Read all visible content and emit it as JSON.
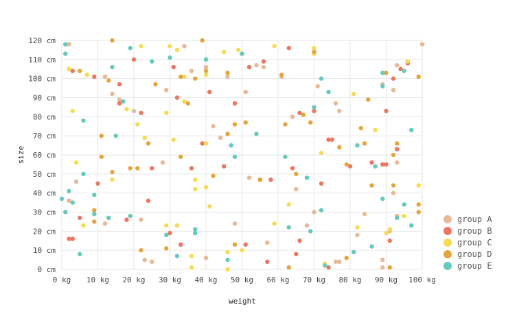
{
  "chart_data": {
    "type": "scatter",
    "xlabel": "weight",
    "ylabel": "size",
    "x_unit": "kg",
    "y_unit": "cm",
    "xlim": [
      0,
      100
    ],
    "ylim": [
      0,
      120
    ],
    "x_ticks": [
      "0 kg",
      "10 kg",
      "20 kg",
      "30 kg",
      "40 kg",
      "50 kg",
      "60 kg",
      "70 kg",
      "80 kg",
      "90 kg",
      "100 kg"
    ],
    "y_ticks": [
      "0 cm",
      "10 cm",
      "20 cm",
      "30 cm",
      "40 cm",
      "50 cm",
      "60 cm",
      "70 cm",
      "80 cm",
      "90 cm",
      "100 cm",
      "110 cm",
      "120 cm"
    ],
    "grid": true,
    "legend_position": "bottom-right",
    "series": [
      {
        "name": "group A",
        "color": "#e9b896",
        "points": [
          [
            2,
            118
          ],
          [
            12,
            101
          ],
          [
            14,
            92
          ],
          [
            20,
            83
          ],
          [
            29,
            94
          ],
          [
            34,
            117
          ],
          [
            36,
            104
          ],
          [
            40,
            106
          ],
          [
            42,
            75
          ],
          [
            46,
            101
          ],
          [
            51,
            93
          ],
          [
            54,
            107
          ],
          [
            56,
            106
          ],
          [
            61,
            101
          ],
          [
            64,
            80
          ],
          [
            71,
            96
          ],
          [
            76,
            87
          ],
          [
            77,
            83
          ],
          [
            89,
            97
          ],
          [
            92,
            94
          ],
          [
            93,
            107
          ],
          [
            100,
            118
          ],
          [
            16,
            89
          ],
          [
            4,
            46
          ],
          [
            12,
            24
          ],
          [
            22,
            26
          ],
          [
            23,
            5
          ],
          [
            25,
            4
          ],
          [
            28,
            56
          ],
          [
            40,
            6
          ],
          [
            44,
            69
          ],
          [
            48,
            24
          ],
          [
            52,
            48
          ],
          [
            57,
            14
          ],
          [
            65,
            42
          ],
          [
            68,
            23
          ],
          [
            70,
            30
          ],
          [
            76,
            4
          ],
          [
            77,
            4
          ],
          [
            84,
            29
          ],
          [
            82,
            18
          ],
          [
            89,
            5
          ],
          [
            89,
            1
          ],
          [
            91,
            20
          ],
          [
            92,
            40
          ],
          [
            93,
            56
          ],
          [
            93,
            63
          ],
          [
            2,
            36
          ],
          [
            93,
            28
          ]
        ]
      },
      {
        "name": "group B",
        "color": "#ef7462",
        "points": [
          [
            3,
            104
          ],
          [
            9,
            101
          ],
          [
            16,
            97
          ],
          [
            20,
            110
          ],
          [
            16,
            87
          ],
          [
            22,
            82
          ],
          [
            31,
            106
          ],
          [
            32,
            90
          ],
          [
            39,
            66
          ],
          [
            41,
            93
          ],
          [
            50,
            113
          ],
          [
            52,
            106
          ],
          [
            56,
            109
          ],
          [
            63,
            116
          ],
          [
            66,
            82
          ],
          [
            70,
            83
          ],
          [
            74,
            68
          ],
          [
            75,
            68
          ],
          [
            80,
            54
          ],
          [
            86,
            56
          ],
          [
            89,
            55
          ],
          [
            90,
            55
          ],
          [
            90,
            83
          ],
          [
            92,
            100
          ],
          [
            93,
            63
          ],
          [
            94,
            105
          ],
          [
            96,
            108
          ],
          [
            10,
            45
          ],
          [
            5,
            27
          ],
          [
            18,
            26
          ],
          [
            24,
            36
          ],
          [
            25,
            53
          ],
          [
            33,
            13
          ],
          [
            36,
            53
          ],
          [
            45,
            54
          ],
          [
            48,
            87
          ],
          [
            55,
            47
          ],
          [
            58,
            47
          ],
          [
            64,
            53
          ],
          [
            65,
            8
          ],
          [
            66,
            15
          ],
          [
            72,
            45
          ],
          [
            74,
            1
          ],
          [
            91,
            15
          ],
          [
            30,
            19
          ],
          [
            2,
            16
          ],
          [
            3,
            16
          ],
          [
            51,
            13
          ],
          [
            57,
            4
          ]
        ]
      },
      {
        "name": "group C",
        "color": "#f6dc4f",
        "points": [
          [
            2,
            105
          ],
          [
            7,
            102
          ],
          [
            22,
            117
          ],
          [
            30,
            117
          ],
          [
            32,
            115
          ],
          [
            34,
            101
          ],
          [
            40,
            102
          ],
          [
            45,
            114
          ],
          [
            49,
            115
          ],
          [
            59,
            117
          ],
          [
            70,
            116
          ],
          [
            70,
            113
          ],
          [
            81,
            92
          ],
          [
            87,
            73
          ],
          [
            96,
            109
          ],
          [
            3,
            83
          ],
          [
            18,
            84
          ],
          [
            21,
            76
          ],
          [
            23,
            69
          ],
          [
            29,
            82
          ],
          [
            31,
            68
          ],
          [
            34,
            88
          ],
          [
            37,
            47
          ],
          [
            37,
            42
          ],
          [
            40,
            43
          ],
          [
            40,
            66
          ],
          [
            41,
            33
          ],
          [
            4,
            56
          ],
          [
            6,
            23
          ],
          [
            14,
            47
          ],
          [
            29,
            23
          ],
          [
            32,
            23
          ],
          [
            36,
            7
          ],
          [
            36,
            1
          ],
          [
            46,
            0
          ],
          [
            46,
            9
          ],
          [
            50,
            10
          ],
          [
            59,
            24
          ],
          [
            63,
            34
          ],
          [
            72,
            61
          ],
          [
            73,
            3
          ],
          [
            82,
            22
          ],
          [
            90,
            19
          ],
          [
            91,
            21
          ],
          [
            95,
            28
          ],
          [
            99,
            44
          ]
        ]
      },
      {
        "name": "group D",
        "color": "#e5a53a",
        "points": [
          [
            5,
            104
          ],
          [
            14,
            120
          ],
          [
            19,
            53
          ],
          [
            21,
            53
          ],
          [
            24,
            66
          ],
          [
            26,
            97
          ],
          [
            33,
            101
          ],
          [
            35,
            87
          ],
          [
            37,
            100
          ],
          [
            39,
            120
          ],
          [
            40,
            104
          ],
          [
            42,
            49
          ],
          [
            46,
            103
          ],
          [
            46,
            71
          ],
          [
            48,
            76
          ],
          [
            51,
            77
          ],
          [
            55,
            47
          ],
          [
            61,
            102
          ],
          [
            62,
            76
          ],
          [
            67,
            81
          ],
          [
            69,
            77
          ],
          [
            70,
            114
          ],
          [
            77,
            64
          ],
          [
            79,
            55
          ],
          [
            83,
            74
          ],
          [
            84,
            66
          ],
          [
            85,
            89
          ],
          [
            86,
            44
          ],
          [
            92,
            44
          ],
          [
            92,
            60
          ],
          [
            93,
            66
          ],
          [
            90,
            103
          ],
          [
            99,
            101
          ],
          [
            99,
            34
          ],
          [
            99,
            30
          ],
          [
            11,
            70
          ],
          [
            11,
            59
          ],
          [
            13,
            99
          ],
          [
            9,
            31
          ],
          [
            9,
            25
          ],
          [
            14,
            51
          ],
          [
            22,
            10
          ],
          [
            29,
            11
          ],
          [
            33,
            59
          ],
          [
            48,
            13
          ],
          [
            63,
            1
          ],
          [
            65,
            50
          ],
          [
            79,
            6
          ],
          [
            91,
            1
          ]
        ]
      },
      {
        "name": "group E",
        "color": "#64cbbb",
        "points": [
          [
            1,
            118
          ],
          [
            1,
            113
          ],
          [
            0,
            37
          ],
          [
            1,
            30
          ],
          [
            2,
            41
          ],
          [
            3,
            35
          ],
          [
            5,
            8
          ],
          [
            6,
            78
          ],
          [
            6,
            50
          ],
          [
            9,
            39
          ],
          [
            9,
            29
          ],
          [
            13,
            27
          ],
          [
            14,
            106
          ],
          [
            15,
            70
          ],
          [
            17,
            88
          ],
          [
            19,
            116
          ],
          [
            19,
            28
          ],
          [
            25,
            109
          ],
          [
            29,
            18
          ],
          [
            30,
            111
          ],
          [
            32,
            7
          ],
          [
            37,
            21
          ],
          [
            37,
            19
          ],
          [
            40,
            110
          ],
          [
            46,
            5
          ],
          [
            47,
            65
          ],
          [
            48,
            59
          ],
          [
            50,
            113
          ],
          [
            54,
            71
          ],
          [
            62,
            59
          ],
          [
            63,
            22
          ],
          [
            68,
            48
          ],
          [
            69,
            20
          ],
          [
            70,
            85
          ],
          [
            72,
            100
          ],
          [
            72,
            31
          ],
          [
            73,
            2
          ],
          [
            74,
            93
          ],
          [
            81,
            9
          ],
          [
            82,
            65
          ],
          [
            86,
            12
          ],
          [
            87,
            54
          ],
          [
            89,
            103
          ],
          [
            89,
            96
          ],
          [
            89,
            37
          ],
          [
            93,
            27
          ],
          [
            95,
            104
          ],
          [
            95,
            34
          ],
          [
            97,
            73
          ],
          [
            97,
            23
          ]
        ]
      }
    ]
  }
}
